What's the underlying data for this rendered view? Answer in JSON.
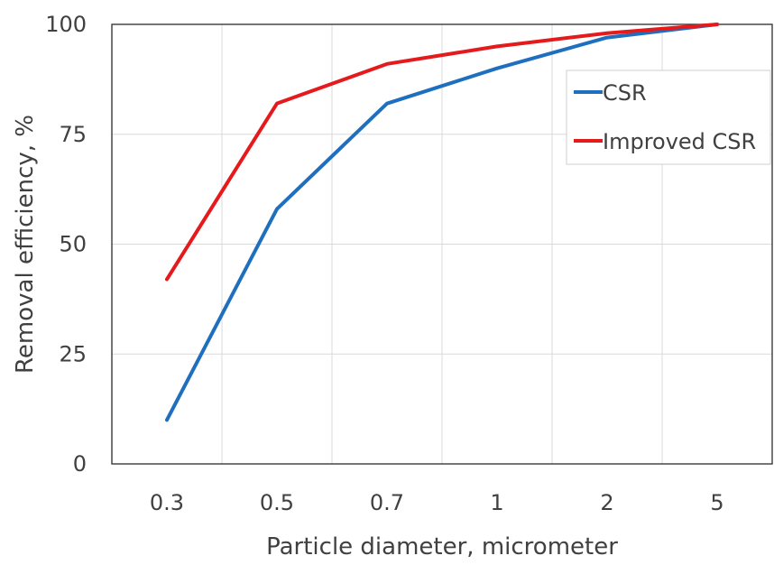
{
  "chart_data": {
    "type": "line",
    "categories": [
      "0.3",
      "0.5",
      "0.7",
      "1",
      "2",
      "5"
    ],
    "series": [
      {
        "name": "CSR",
        "color": "#1f6fbf",
        "values": [
          10,
          58,
          82,
          90,
          97,
          100
        ]
      },
      {
        "name": "Improved CSR",
        "color": "#e41a1c",
        "values": [
          42,
          82,
          91,
          95,
          98,
          100
        ]
      }
    ],
    "xlabel": "Particle diameter, micrometer",
    "ylabel": "Removal efficiency, %",
    "ylim": [
      0,
      100
    ],
    "yticks": [
      0,
      25,
      50,
      75,
      100
    ],
    "grid": true,
    "legend_position": "right"
  }
}
